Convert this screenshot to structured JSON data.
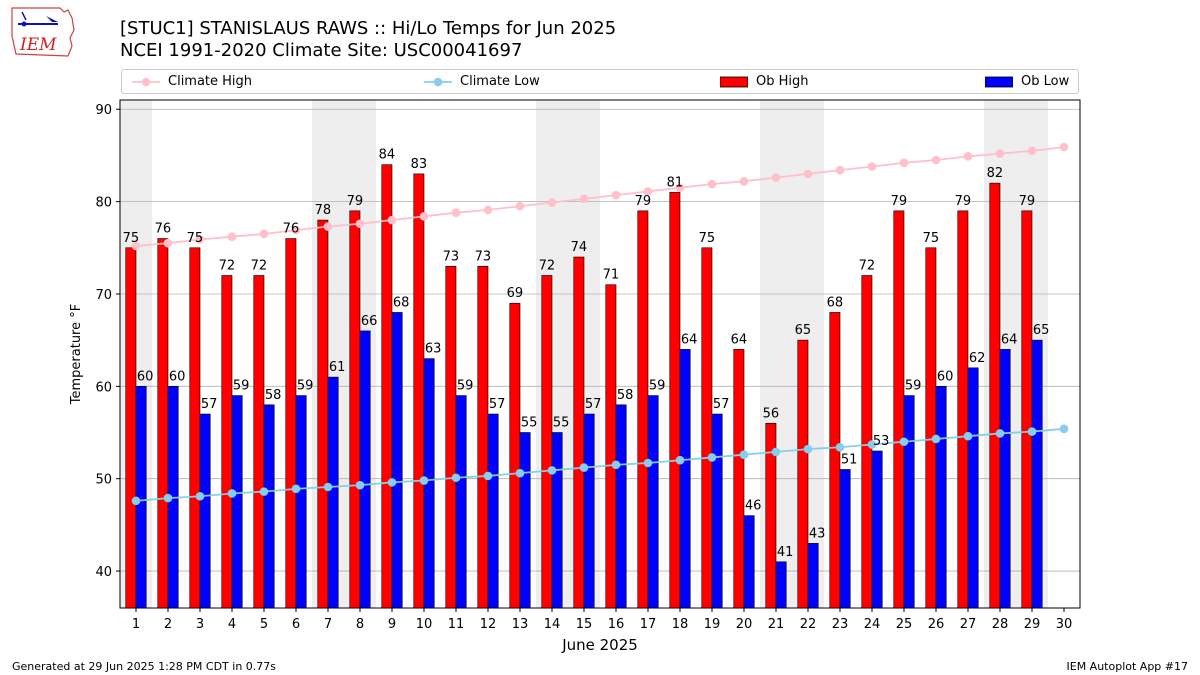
{
  "header": {
    "title_line1": "[STUC1] STANISLAUS RAWS :: Hi/Lo Temps for Jun 2025",
    "title_line2": "NCEI 1991-2020 Climate Site: USC00041697",
    "logo_text": "IEM"
  },
  "footer": {
    "left": "Generated at 29 Jun 2025 1:28 PM CDT in 0.77s",
    "right": "IEM Autoplot App #17"
  },
  "colors": {
    "climate_high": "#ffc0cb",
    "climate_low": "#87ceeb",
    "ob_high": "#ff0000",
    "ob_low": "#0000ff",
    "weekend_shade": "#eeeeee",
    "grid": "#b0b0b0"
  },
  "chart_data": {
    "type": "bar",
    "title": "[STUC1] STANISLAUS RAWS :: Hi/Lo Temps for Jun 2025",
    "xlabel": "June 2025",
    "ylabel": "Temperature °F",
    "ylim": [
      36,
      91
    ],
    "yticks": [
      40,
      50,
      60,
      70,
      80,
      90
    ],
    "grid": true,
    "legend_position": "top",
    "categories": [
      "1",
      "2",
      "3",
      "4",
      "5",
      "6",
      "7",
      "8",
      "9",
      "10",
      "11",
      "12",
      "13",
      "14",
      "15",
      "16",
      "17",
      "18",
      "19",
      "20",
      "21",
      "22",
      "23",
      "24",
      "25",
      "26",
      "27",
      "28",
      "29",
      "30"
    ],
    "shaded_days": [
      1,
      7,
      8,
      14,
      15,
      21,
      22,
      28,
      29
    ],
    "series": [
      {
        "name": "Climate High",
        "kind": "line",
        "values": [
          75.2,
          75.5,
          75.9,
          76.2,
          76.5,
          76.9,
          77.3,
          77.6,
          78.0,
          78.4,
          78.8,
          79.1,
          79.5,
          79.9,
          80.3,
          80.7,
          81.1,
          81.5,
          81.9,
          82.2,
          82.6,
          83.0,
          83.4,
          83.8,
          84.2,
          84.5,
          84.9,
          85.2,
          85.5,
          85.9
        ]
      },
      {
        "name": "Climate Low",
        "kind": "line",
        "values": [
          47.6,
          47.9,
          48.1,
          48.4,
          48.6,
          48.9,
          49.1,
          49.3,
          49.6,
          49.8,
          50.1,
          50.3,
          50.6,
          50.9,
          51.2,
          51.5,
          51.7,
          52.0,
          52.3,
          52.6,
          52.9,
          53.2,
          53.4,
          53.7,
          54.0,
          54.3,
          54.6,
          54.9,
          55.1,
          55.4
        ]
      },
      {
        "name": "Ob High",
        "kind": "bar",
        "values": [
          75,
          76,
          75,
          72,
          72,
          76,
          78,
          79,
          84,
          83,
          73,
          73,
          69,
          72,
          74,
          71,
          79,
          81,
          75,
          64,
          56,
          65,
          68,
          72,
          79,
          75,
          79,
          82,
          79,
          null
        ]
      },
      {
        "name": "Ob Low",
        "kind": "bar",
        "values": [
          60,
          60,
          57,
          59,
          58,
          59,
          61,
          66,
          68,
          63,
          59,
          57,
          55,
          55,
          57,
          58,
          59,
          64,
          57,
          46,
          41,
          43,
          51,
          53,
          59,
          60,
          62,
          64,
          65,
          null
        ]
      }
    ]
  }
}
